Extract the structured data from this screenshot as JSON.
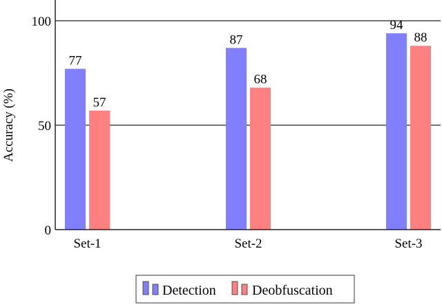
{
  "chart_data": {
    "type": "bar",
    "title": "",
    "xlabel": "",
    "ylabel": "Accuracy (%)",
    "ylim": [
      0,
      100
    ],
    "yticks": [
      0,
      50,
      100
    ],
    "grid": "horizontal at 50 and 100",
    "legend_position": "bottom-center",
    "categories": [
      "Set-1",
      "Set-2",
      "Set-3"
    ],
    "series": [
      {
        "name": "Detection",
        "color": "#8080ff",
        "values": [
          77,
          87,
          94
        ]
      },
      {
        "name": "Deobfuscation",
        "color": "#ff8080",
        "values": [
          57,
          68,
          88
        ]
      }
    ]
  },
  "labels": {
    "ylabel": "Accuracy (%)",
    "legend_detection": "Detection",
    "legend_deobfuscation": "Deobfuscation"
  }
}
